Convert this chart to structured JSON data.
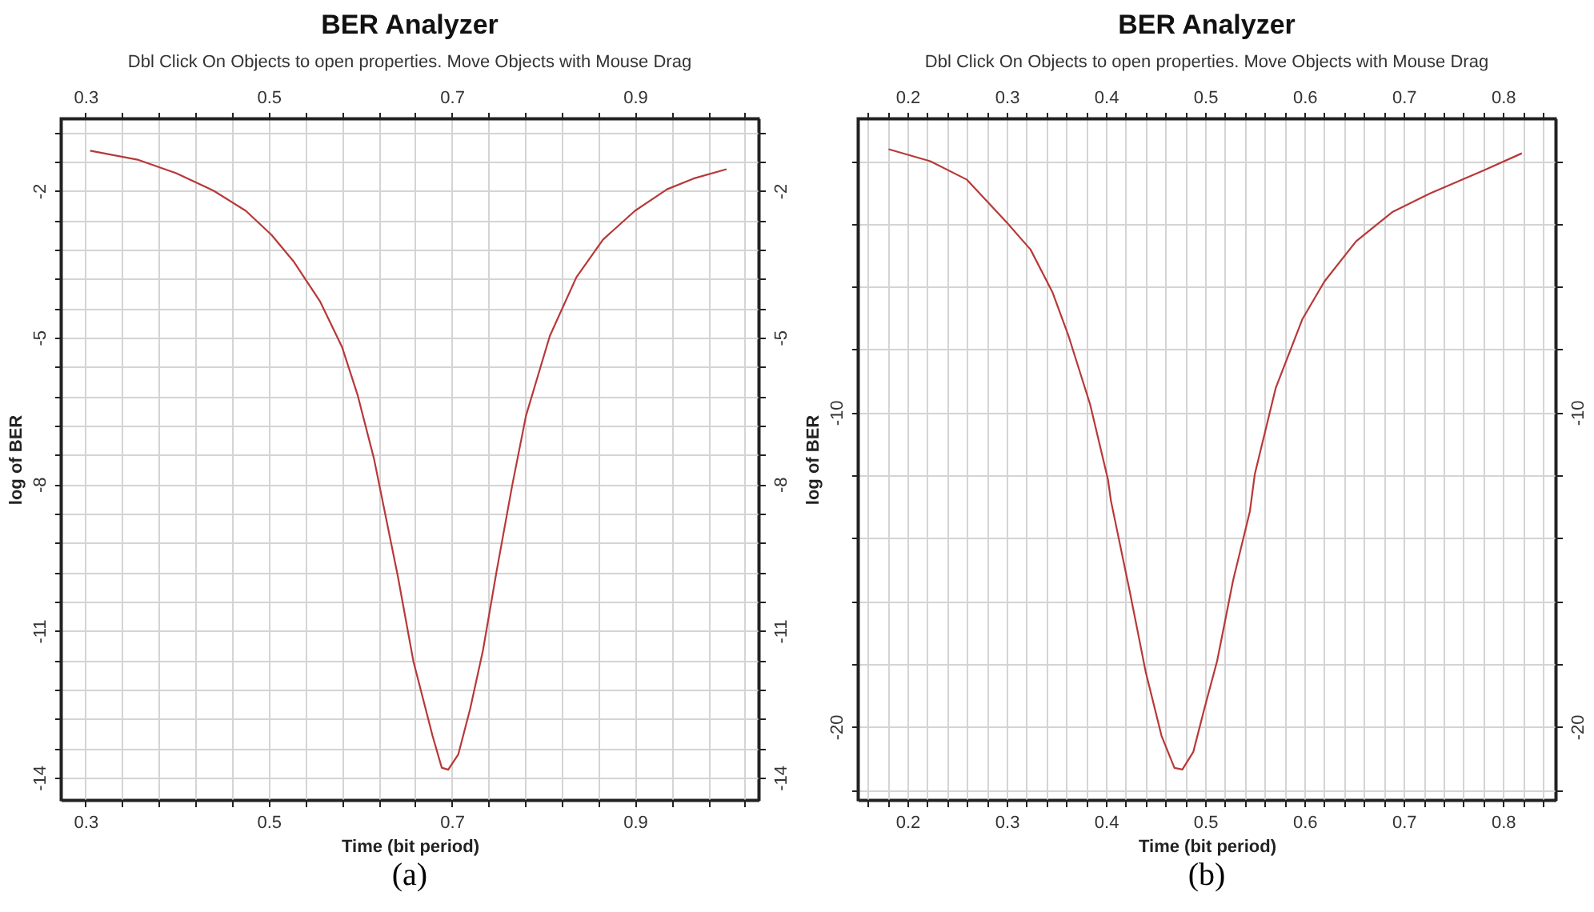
{
  "chart_data": [
    {
      "type": "line",
      "title": "BER Analyzer",
      "subtitle": "Dbl Click On Objects to open properties.  Move Objects with Mouse Drag",
      "xlabel": "Time (bit period)",
      "ylabel": "log of BER",
      "annotations": [
        "(a)"
      ],
      "x": [
        0.305,
        0.358,
        0.399,
        0.44,
        0.475,
        0.503,
        0.527,
        0.556,
        0.58,
        0.597,
        0.615,
        0.641,
        0.658,
        0.679,
        0.689,
        0.696,
        0.707,
        0.72,
        0.734,
        0.749,
        0.766,
        0.781,
        0.807,
        0.836,
        0.865,
        0.9,
        0.935,
        0.964,
        1.0
      ],
      "series": [
        {
          "color": "#b83838",
          "values": [
            -1.18,
            -1.37,
            -1.64,
            -2.0,
            -2.41,
            -2.9,
            -3.44,
            -4.26,
            -5.19,
            -6.17,
            -7.48,
            -9.88,
            -11.62,
            -13.15,
            -13.8,
            -13.84,
            -13.53,
            -12.6,
            -11.4,
            -9.77,
            -8.02,
            -6.6,
            -4.97,
            -3.77,
            -3.0,
            -2.41,
            -1.97,
            -1.75,
            -1.56
          ]
        }
      ],
      "xlim": [
        0.273,
        1.035
      ],
      "x2lim": [
        0.273,
        1.035
      ],
      "xticks": [
        0.3,
        {
          "value": 0.34,
          "label": null
        },
        {
          "value": 0.38,
          "label": null
        },
        {
          "value": 0.42,
          "label": null
        },
        {
          "value": 0.46,
          "label": null
        },
        0.5,
        {
          "value": 0.54,
          "label": null
        },
        {
          "value": 0.58,
          "label": null
        },
        {
          "value": 0.62,
          "label": null
        },
        {
          "value": 0.66,
          "label": null
        },
        0.7,
        {
          "value": 0.74,
          "label": null
        },
        {
          "value": 0.78,
          "label": null
        },
        {
          "value": 0.82,
          "label": null
        },
        {
          "value": 0.86,
          "label": null
        },
        0.9,
        {
          "value": 0.94,
          "label": null
        },
        {
          "value": 0.98,
          "label": null
        },
        {
          "value": 1.02,
          "label": null
        }
      ],
      "x2ticks": [
        0.3,
        {
          "value": 0.34,
          "label": null
        },
        {
          "value": 0.38,
          "label": null
        },
        {
          "value": 0.42,
          "label": null
        },
        {
          "value": 0.46,
          "label": null
        },
        0.5,
        {
          "value": 0.54,
          "label": null
        },
        {
          "value": 0.58,
          "label": null
        },
        {
          "value": 0.62,
          "label": null
        },
        {
          "value": 0.66,
          "label": null
        },
        0.7,
        {
          "value": 0.74,
          "label": null
        },
        {
          "value": 0.78,
          "label": null
        },
        {
          "value": 0.82,
          "label": null
        },
        {
          "value": 0.86,
          "label": null
        },
        0.9,
        {
          "value": 0.94,
          "label": null
        },
        {
          "value": 0.98,
          "label": null
        },
        {
          "value": 1.02,
          "label": null
        }
      ],
      "ylim": [
        -14.46,
        -0.52
      ],
      "y2lim": [
        -14.46,
        -0.52
      ],
      "yticks": [
        {
          "value": -0.8,
          "label": null
        },
        {
          "value": -1.4,
          "label": null
        },
        -2,
        {
          "value": -2.6,
          "label": null
        },
        {
          "value": -3.2,
          "label": null
        },
        {
          "value": -3.8,
          "label": null
        },
        {
          "value": -4.4,
          "label": null
        },
        -5,
        {
          "value": -5.6,
          "label": null
        },
        {
          "value": -6.2,
          "label": null
        },
        {
          "value": -6.8,
          "label": null
        },
        {
          "value": -7.4,
          "label": null
        },
        -8,
        {
          "value": -8.6,
          "label": null
        },
        {
          "value": -9.2,
          "label": null
        },
        {
          "value": -9.8,
          "label": null
        },
        {
          "value": -10.4,
          "label": null
        },
        -11,
        {
          "value": -11.6,
          "label": null
        },
        {
          "value": -12.2,
          "label": null
        },
        {
          "value": -12.8,
          "label": null
        },
        {
          "value": -13.4,
          "label": null
        },
        -14
      ],
      "y2ticks": [
        {
          "value": -0.8,
          "label": null
        },
        {
          "value": -1.4,
          "label": null
        },
        -2,
        {
          "value": -2.6,
          "label": null
        },
        {
          "value": -3.2,
          "label": null
        },
        {
          "value": -3.8,
          "label": null
        },
        {
          "value": -4.4,
          "label": null
        },
        -5,
        {
          "value": -5.6,
          "label": null
        },
        {
          "value": -6.2,
          "label": null
        },
        {
          "value": -6.8,
          "label": null
        },
        {
          "value": -7.4,
          "label": null
        },
        -8,
        {
          "value": -8.6,
          "label": null
        },
        {
          "value": -9.2,
          "label": null
        },
        {
          "value": -9.8,
          "label": null
        },
        {
          "value": -10.4,
          "label": null
        },
        -11,
        {
          "value": -11.6,
          "label": null
        },
        {
          "value": -12.2,
          "label": null
        },
        {
          "value": -12.8,
          "label": null
        },
        {
          "value": -13.4,
          "label": null
        },
        -14
      ],
      "grid": true
    },
    {
      "type": "line",
      "title": "BER Analyzer",
      "subtitle": "Dbl Click On Objects to open properties.  Move Objects with Mouse Drag",
      "xlabel": "Time (bit period)",
      "ylabel": "log of BER",
      "annotations": [
        "(b)"
      ],
      "x": [
        0.181,
        0.223,
        0.26,
        0.3,
        0.324,
        0.346,
        0.362,
        0.384,
        0.402,
        0.405,
        0.424,
        0.44,
        0.456,
        0.469,
        0.477,
        0.488,
        0.499,
        0.512,
        0.528,
        0.545,
        0.55,
        0.571,
        0.598,
        0.62,
        0.652,
        0.689,
        0.727,
        0.781,
        0.819
      ],
      "series": [
        {
          "color": "#b83838",
          "values": [
            -1.63,
            -2.01,
            -2.6,
            -3.96,
            -4.82,
            -6.17,
            -7.54,
            -9.74,
            -12.13,
            -12.81,
            -15.7,
            -18.25,
            -20.29,
            -21.31,
            -21.36,
            -20.8,
            -19.44,
            -17.91,
            -15.36,
            -13.15,
            -11.96,
            -9.23,
            -7.03,
            -5.84,
            -4.56,
            -3.62,
            -3.03,
            -2.3,
            -1.76
          ]
        }
      ],
      "xlim": [
        0.15,
        0.853
      ],
      "x2lim": [
        0.15,
        0.853
      ],
      "xticks": [
        {
          "value": 0.16,
          "label": null
        },
        {
          "value": 0.18,
          "label": null
        },
        0.2,
        {
          "value": 0.22,
          "label": null
        },
        {
          "value": 0.24,
          "label": null
        },
        {
          "value": 0.26,
          "label": null
        },
        {
          "value": 0.28,
          "label": null
        },
        0.3,
        {
          "value": 0.32,
          "label": null
        },
        {
          "value": 0.34,
          "label": null
        },
        {
          "value": 0.36,
          "label": null
        },
        {
          "value": 0.38,
          "label": null
        },
        0.4,
        {
          "value": 0.42,
          "label": null
        },
        {
          "value": 0.44,
          "label": null
        },
        {
          "value": 0.46,
          "label": null
        },
        {
          "value": 0.48,
          "label": null
        },
        0.5,
        {
          "value": 0.52,
          "label": null
        },
        {
          "value": 0.54,
          "label": null
        },
        {
          "value": 0.56,
          "label": null
        },
        {
          "value": 0.58,
          "label": null
        },
        0.6,
        {
          "value": 0.62,
          "label": null
        },
        {
          "value": 0.64,
          "label": null
        },
        {
          "value": 0.66,
          "label": null
        },
        {
          "value": 0.68,
          "label": null
        },
        0.7,
        {
          "value": 0.72,
          "label": null
        },
        {
          "value": 0.74,
          "label": null
        },
        {
          "value": 0.76,
          "label": null
        },
        {
          "value": 0.78,
          "label": null
        },
        0.8,
        {
          "value": 0.82,
          "label": null
        },
        {
          "value": 0.84,
          "label": null
        }
      ],
      "x2ticks": [
        {
          "value": 0.16,
          "label": null
        },
        {
          "value": 0.18,
          "label": null
        },
        0.2,
        {
          "value": 0.22,
          "label": null
        },
        {
          "value": 0.24,
          "label": null
        },
        {
          "value": 0.26,
          "label": null
        },
        {
          "value": 0.28,
          "label": null
        },
        0.3,
        {
          "value": 0.32,
          "label": null
        },
        {
          "value": 0.34,
          "label": null
        },
        {
          "value": 0.36,
          "label": null
        },
        {
          "value": 0.38,
          "label": null
        },
        0.4,
        {
          "value": 0.42,
          "label": null
        },
        {
          "value": 0.44,
          "label": null
        },
        {
          "value": 0.46,
          "label": null
        },
        {
          "value": 0.48,
          "label": null
        },
        0.5,
        {
          "value": 0.52,
          "label": null
        },
        {
          "value": 0.54,
          "label": null
        },
        {
          "value": 0.56,
          "label": null
        },
        {
          "value": 0.58,
          "label": null
        },
        0.6,
        {
          "value": 0.62,
          "label": null
        },
        {
          "value": 0.64,
          "label": null
        },
        {
          "value": 0.66,
          "label": null
        },
        {
          "value": 0.68,
          "label": null
        },
        0.7,
        {
          "value": 0.72,
          "label": null
        },
        {
          "value": 0.74,
          "label": null
        },
        {
          "value": 0.76,
          "label": null
        },
        {
          "value": 0.78,
          "label": null
        },
        0.8,
        {
          "value": 0.82,
          "label": null
        },
        {
          "value": 0.84,
          "label": null
        }
      ],
      "ylim": [
        -22.33,
        -0.65
      ],
      "y2lim": [
        -22.33,
        -0.65
      ],
      "yticks": [
        {
          "value": -2,
          "label": null
        },
        {
          "value": -4,
          "label": null
        },
        {
          "value": -6,
          "label": null
        },
        {
          "value": -8,
          "label": null
        },
        -10,
        {
          "value": -12,
          "label": null
        },
        {
          "value": -14,
          "label": null
        },
        {
          "value": -16,
          "label": null
        },
        {
          "value": -18,
          "label": null
        },
        -20,
        {
          "value": -22,
          "label": null
        }
      ],
      "y2ticks": [
        {
          "value": -2,
          "label": null
        },
        {
          "value": -4,
          "label": null
        },
        {
          "value": -6,
          "label": null
        },
        {
          "value": -8,
          "label": null
        },
        -10,
        {
          "value": -12,
          "label": null
        },
        {
          "value": -14,
          "label": null
        },
        {
          "value": -16,
          "label": null
        },
        {
          "value": -18,
          "label": null
        },
        -20,
        {
          "value": -22,
          "label": null
        }
      ],
      "grid": true
    }
  ]
}
